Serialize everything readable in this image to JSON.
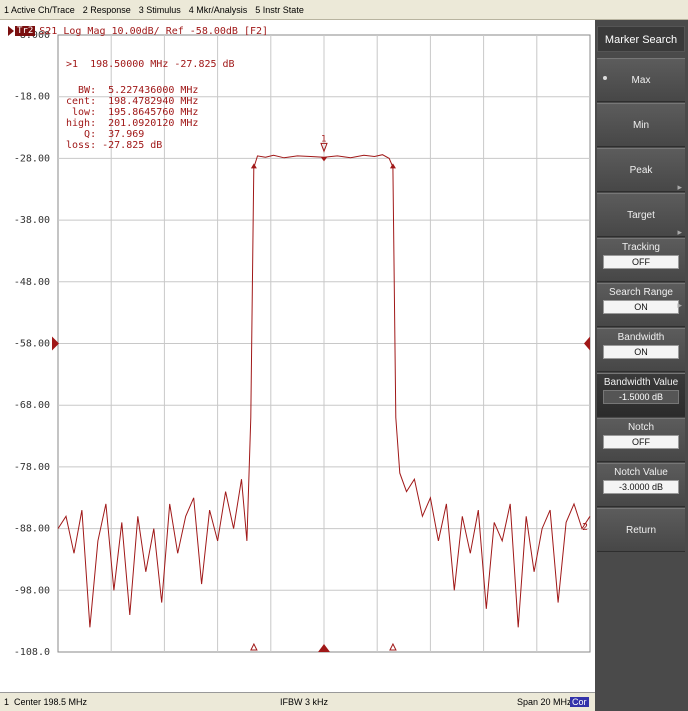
{
  "menu": [
    "1 Active Ch/Trace",
    "2 Response",
    "3 Stimulus",
    "4 Mkr/Analysis",
    "5 Instr State"
  ],
  "trace": {
    "badge": "Tr2",
    "header": "S21 Log Mag 10.00dB/ Ref -58.00dB [F2]",
    "color": "#a01818"
  },
  "marker_readout": {
    "line1": ">1  198.50000 MHz -27.825 dB",
    "bw": "  BW:  5.227436000 MHz",
    "cent": "cent:  198.4782940 MHz",
    "low": " low:  195.8645760 MHz",
    "high": "high:  201.0920120 MHz",
    "q": "   Q:  37.969",
    "loss": "loss: -27.825 dB"
  },
  "marker_label": "1",
  "right_edge_label": "2",
  "status": {
    "channel": "1",
    "center": "Center 198.5 MHz",
    "ifbw": "IFBW 3 kHz",
    "span": "Span 20 MHz",
    "cor": "Cor"
  },
  "softkeys": {
    "title": "Marker Search",
    "items": [
      {
        "label": "Max",
        "selected": true
      },
      {
        "label": "Min"
      },
      {
        "label": "Peak",
        "submenu": true
      },
      {
        "label": "Target",
        "submenu": true
      },
      {
        "label": "Tracking",
        "value": "OFF"
      },
      {
        "label": "Search Range",
        "value": "ON",
        "submenu": true
      },
      {
        "label": "Bandwidth",
        "value": "ON"
      },
      {
        "label": "Bandwidth Value",
        "value": "-1.5000 dB"
      },
      {
        "label": "Notch",
        "value": "OFF"
      },
      {
        "label": "Notch Value",
        "value": "-3.0000 dB"
      },
      {
        "label": "Return"
      }
    ]
  },
  "chart_data": {
    "type": "line",
    "title": "",
    "xlabel": "",
    "ylabel": "",
    "ref_level": -58.0,
    "xlim": [
      188.5,
      208.5
    ],
    "ylim": [
      -108.0,
      -8.0
    ],
    "y_ticks": [
      "-8.000",
      "-18.00",
      "-28.00",
      "-38.00",
      "-48.00",
      "-58.00",
      "-68.00",
      "-78.00",
      "-88.00",
      "-98.00",
      "-108.0"
    ],
    "grid": true,
    "series": [
      {
        "color": "#a01818",
        "x": [
          188.5,
          188.8,
          189.1,
          189.4,
          189.7,
          190.0,
          190.3,
          190.6,
          190.9,
          191.2,
          191.5,
          191.8,
          192.1,
          192.4,
          192.7,
          193.0,
          193.3,
          193.6,
          193.9,
          194.2,
          194.5,
          194.8,
          195.1,
          195.4,
          195.6,
          195.75,
          195.86,
          196.0,
          196.3,
          196.6,
          197.0,
          197.5,
          198.0,
          198.5,
          199.0,
          199.5,
          200.0,
          200.4,
          200.7,
          200.95,
          201.09,
          201.2,
          201.35,
          201.6,
          201.9,
          202.2,
          202.5,
          202.8,
          203.1,
          203.4,
          203.7,
          204.0,
          204.3,
          204.6,
          204.9,
          205.2,
          205.5,
          205.8,
          206.1,
          206.4,
          206.7,
          207.0,
          207.3,
          207.6,
          207.9,
          208.2,
          208.5
        ],
        "y": [
          -88,
          -86,
          -92,
          -85,
          -104,
          -90,
          -84,
          -98,
          -87,
          -102,
          -86,
          -95,
          -88,
          -100,
          -84,
          -92,
          -86,
          -83,
          -97,
          -85,
          -90,
          -82,
          -88,
          -80,
          -90,
          -70,
          -29.5,
          -27.6,
          -27.8,
          -27.5,
          -27.9,
          -27.6,
          -27.7,
          -27.8,
          -27.6,
          -27.9,
          -27.5,
          -27.7,
          -27.4,
          -28.0,
          -29.4,
          -70,
          -79,
          -82,
          -80,
          -86,
          -83,
          -90,
          -84,
          -98,
          -86,
          -92,
          -85,
          -101,
          -87,
          -90,
          -84,
          -104,
          -86,
          -95,
          -88,
          -85,
          -100,
          -87,
          -84,
          -88,
          -86
        ]
      }
    ],
    "markers": [
      {
        "name": "1",
        "x": 198.5,
        "y": -27.825
      },
      {
        "name": "low",
        "x": 195.864576,
        "y": -29.3
      },
      {
        "name": "high",
        "x": 201.092012,
        "y": -29.3
      }
    ]
  }
}
